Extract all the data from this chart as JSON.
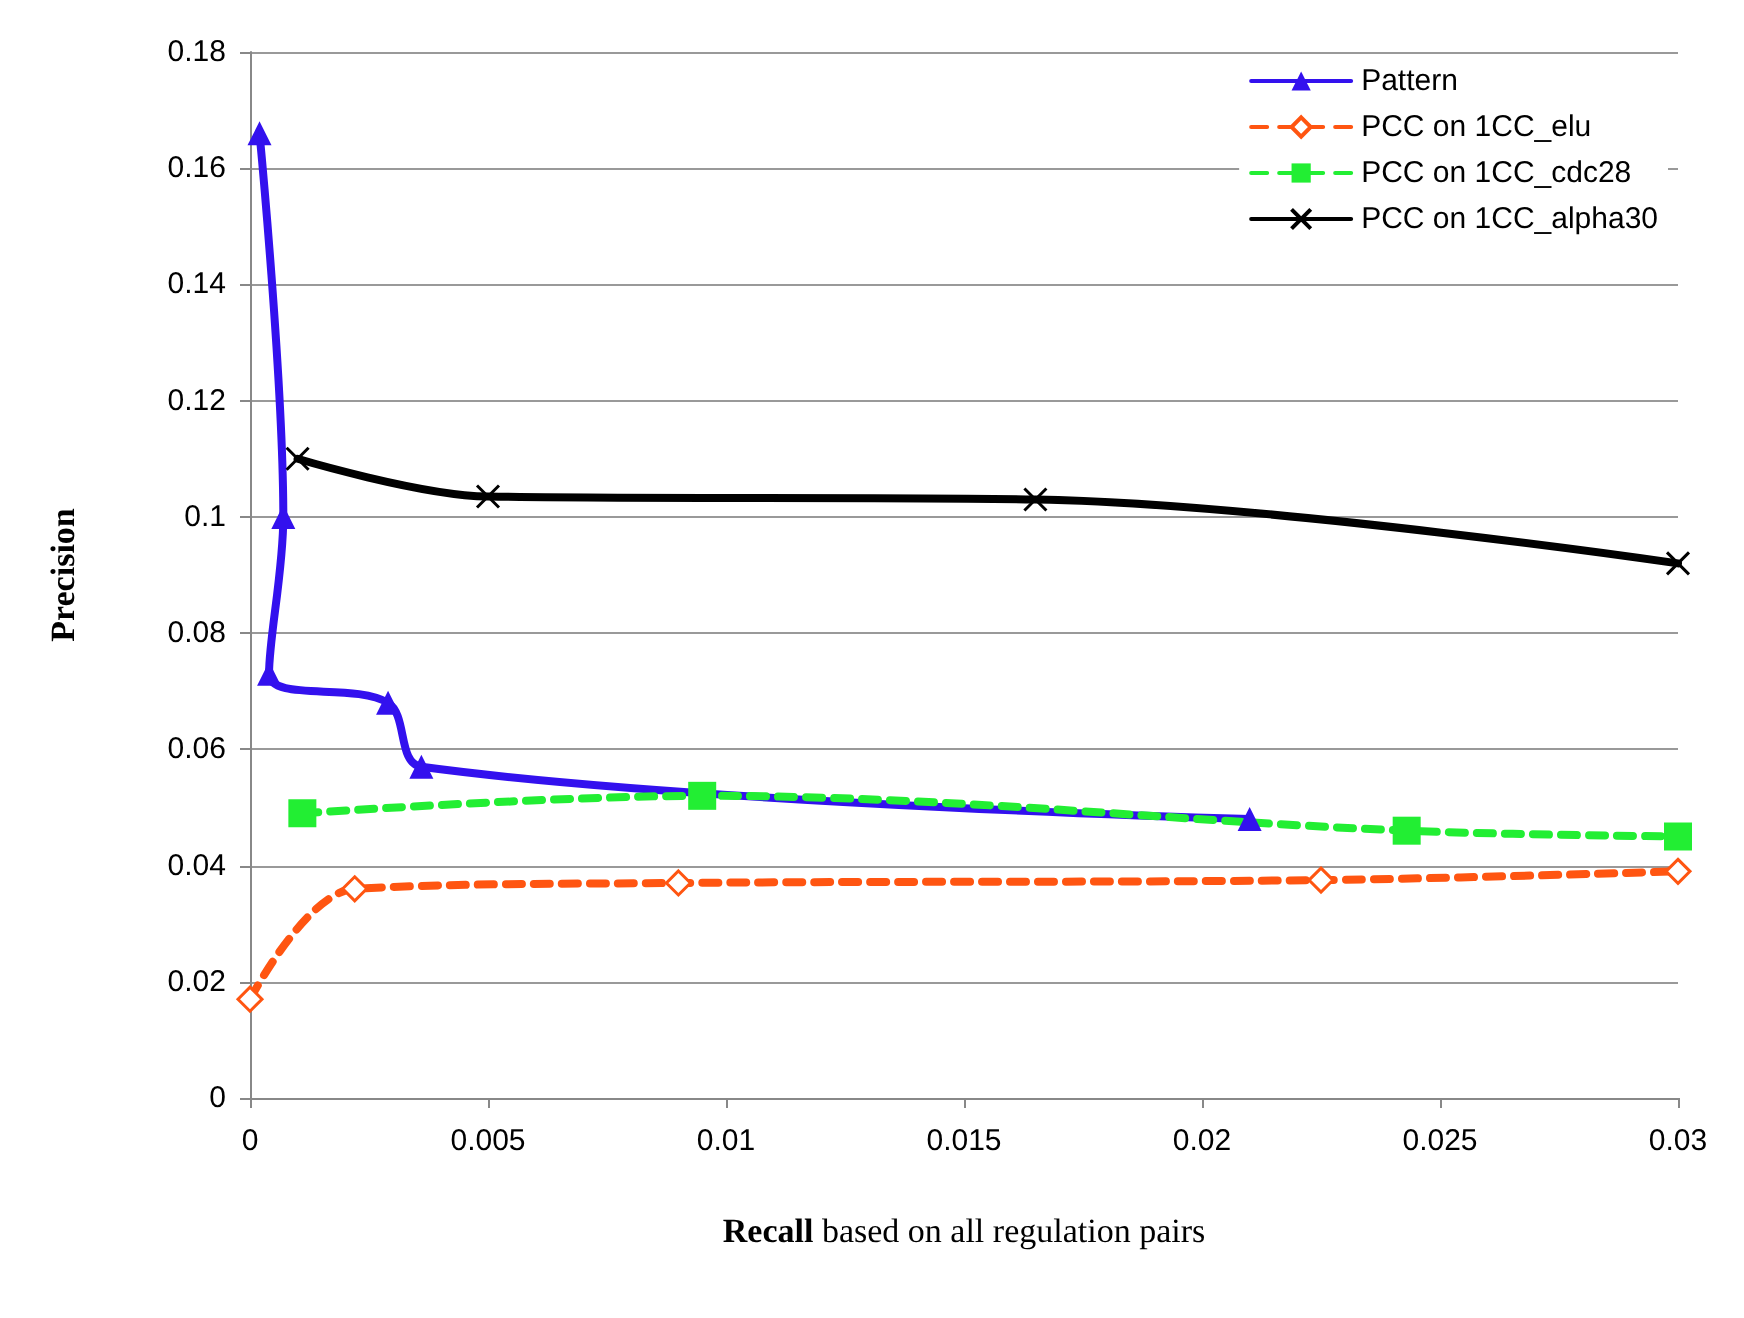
{
  "chart_data": {
    "type": "line",
    "xlabel": "Recall based on all regulation pairs",
    "ylabel": "Precision",
    "xlim": [
      0,
      0.03
    ],
    "ylim": [
      0,
      0.18
    ],
    "xticks": [
      0,
      0.005,
      0.01,
      0.015,
      0.02,
      0.025,
      0.03
    ],
    "yticks": [
      0,
      0.02,
      0.04,
      0.06,
      0.08,
      0.1,
      0.12,
      0.14,
      0.16,
      0.18
    ],
    "grid": "y",
    "legend": "top right",
    "series": [
      {
        "name": "Pattern",
        "color": "#3311ee",
        "marker": "triangle",
        "line_style": "solid",
        "x": [
          0.0002,
          0.0007,
          0.0004,
          0.0029,
          0.0036,
          0.021
        ],
        "values": [
          0.166,
          0.1,
          0.073,
          0.068,
          0.057,
          0.048
        ]
      },
      {
        "name": "PCC on 1CC_elu",
        "color": "#ff5511",
        "marker": "diamond",
        "line_style": "dashed",
        "x": [
          0.0,
          0.0022,
          0.009,
          0.0225,
          0.03
        ],
        "values": [
          0.017,
          0.036,
          0.037,
          0.0375,
          0.039
        ]
      },
      {
        "name": "PCC on 1CC_cdc28",
        "color": "#22ee33",
        "marker": "square",
        "line_style": "dashed",
        "x": [
          0.0011,
          0.0095,
          0.0243,
          0.03
        ],
        "values": [
          0.049,
          0.052,
          0.046,
          0.045
        ]
      },
      {
        "name": "PCC on 1CC_alpha30",
        "color": "#000000",
        "marker": "cross",
        "line_style": "solid",
        "x": [
          0.001,
          0.005,
          0.0165,
          0.03
        ],
        "values": [
          0.11,
          0.1035,
          0.103,
          0.092
        ]
      }
    ]
  }
}
